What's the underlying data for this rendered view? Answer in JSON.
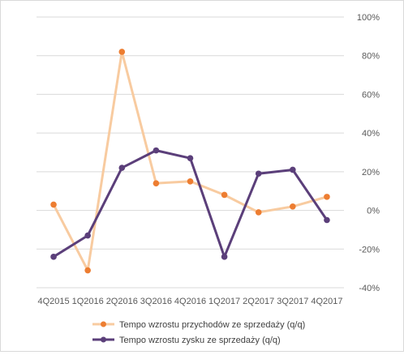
{
  "chart_data": {
    "type": "line",
    "categories": [
      "4Q2015",
      "1Q2016",
      "2Q2016",
      "3Q2016",
      "4Q2016",
      "1Q2017",
      "2Q2017",
      "3Q2017",
      "4Q2017"
    ],
    "ylim": [
      -40,
      100
    ],
    "yticks": [
      -40,
      -20,
      0,
      20,
      40,
      60,
      80,
      100
    ],
    "ytick_labels": [
      "-40%",
      "-20%",
      "0%",
      "20%",
      "40%",
      "60%",
      "80%",
      "100%"
    ],
    "y_axis_side": "right",
    "grid": "horizontal",
    "legend_position": "bottom",
    "series": [
      {
        "name": "Tempo wzrostu przychodów ze sprzedaży (q/q)",
        "values": [
          3,
          -31,
          82,
          14,
          15,
          8,
          -1,
          2,
          7
        ],
        "line_color": "#f8cba0",
        "marker_color": "#ed7d31"
      },
      {
        "name": "Tempo wzrostu zysku ze sprzedaży (q/q)",
        "values": [
          -24,
          -13,
          22,
          31,
          27,
          -24,
          19,
          21,
          -5
        ],
        "line_color": "#5b3f7a",
        "marker_color": "#5b3f7a"
      }
    ]
  }
}
